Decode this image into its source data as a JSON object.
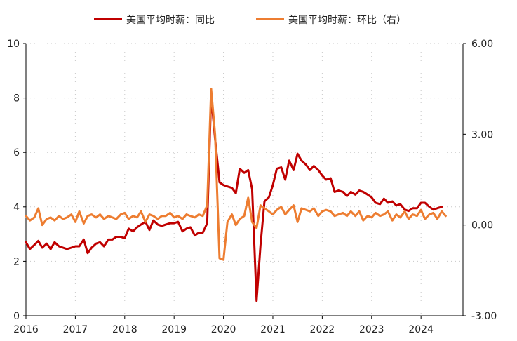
{
  "chart_data": {
    "type": "line",
    "legend": {
      "position": "top-center"
    },
    "x_axis": {
      "range": [
        2016.0,
        2024.85
      ],
      "ticks": [
        2016,
        2017,
        2018,
        2019,
        2020,
        2021,
        2022,
        2023,
        2024
      ]
    },
    "y_left": {
      "range": [
        0,
        10
      ],
      "tick_labels": [
        "0",
        "2",
        "4",
        "6",
        "8",
        "10"
      ]
    },
    "y_right": {
      "range": [
        -3,
        6
      ],
      "tick_labels": [
        "-3.00",
        "0.00",
        "3.00",
        "6.00"
      ]
    },
    "grid": {
      "vertical": true,
      "horizontal": true,
      "style": "dotted"
    },
    "series": [
      {
        "name": "美国平均时薪：同比",
        "color": "#c00000",
        "axis": "left",
        "points": [
          [
            2016.0,
            2.7
          ],
          [
            2016.08,
            2.45
          ],
          [
            2016.17,
            2.6
          ],
          [
            2016.25,
            2.75
          ],
          [
            2016.33,
            2.5
          ],
          [
            2016.42,
            2.65
          ],
          [
            2016.5,
            2.45
          ],
          [
            2016.58,
            2.7
          ],
          [
            2016.67,
            2.55
          ],
          [
            2016.75,
            2.5
          ],
          [
            2016.83,
            2.45
          ],
          [
            2016.92,
            2.5
          ],
          [
            2017.0,
            2.55
          ],
          [
            2017.08,
            2.55
          ],
          [
            2017.17,
            2.8
          ],
          [
            2017.25,
            2.3
          ],
          [
            2017.33,
            2.5
          ],
          [
            2017.42,
            2.65
          ],
          [
            2017.5,
            2.7
          ],
          [
            2017.58,
            2.55
          ],
          [
            2017.67,
            2.8
          ],
          [
            2017.75,
            2.8
          ],
          [
            2017.83,
            2.9
          ],
          [
            2017.92,
            2.9
          ],
          [
            2018.0,
            2.85
          ],
          [
            2018.08,
            3.2
          ],
          [
            2018.17,
            3.1
          ],
          [
            2018.25,
            3.25
          ],
          [
            2018.33,
            3.35
          ],
          [
            2018.42,
            3.45
          ],
          [
            2018.5,
            3.15
          ],
          [
            2018.58,
            3.5
          ],
          [
            2018.67,
            3.35
          ],
          [
            2018.75,
            3.3
          ],
          [
            2018.83,
            3.35
          ],
          [
            2018.92,
            3.4
          ],
          [
            2019.0,
            3.4
          ],
          [
            2019.08,
            3.45
          ],
          [
            2019.17,
            3.1
          ],
          [
            2019.25,
            3.2
          ],
          [
            2019.33,
            3.25
          ],
          [
            2019.42,
            2.95
          ],
          [
            2019.5,
            3.05
          ],
          [
            2019.58,
            3.05
          ],
          [
            2019.67,
            3.4
          ],
          [
            2019.75,
            8.1
          ],
          [
            2019.83,
            6.5
          ],
          [
            2019.92,
            4.9
          ],
          [
            2020.0,
            4.8
          ],
          [
            2020.08,
            4.75
          ],
          [
            2020.17,
            4.7
          ],
          [
            2020.25,
            4.5
          ],
          [
            2020.33,
            5.4
          ],
          [
            2020.42,
            5.25
          ],
          [
            2020.5,
            5.35
          ],
          [
            2020.58,
            4.65
          ],
          [
            2020.67,
            0.55
          ],
          [
            2020.75,
            2.6
          ],
          [
            2020.83,
            4.2
          ],
          [
            2020.92,
            4.35
          ],
          [
            2021.0,
            4.8
          ],
          [
            2021.08,
            5.4
          ],
          [
            2021.17,
            5.45
          ],
          [
            2021.25,
            5.0
          ],
          [
            2021.33,
            5.7
          ],
          [
            2021.42,
            5.35
          ],
          [
            2021.5,
            5.95
          ],
          [
            2021.58,
            5.7
          ],
          [
            2021.67,
            5.55
          ],
          [
            2021.75,
            5.35
          ],
          [
            2021.83,
            5.5
          ],
          [
            2021.92,
            5.35
          ],
          [
            2022.0,
            5.15
          ],
          [
            2022.08,
            5.0
          ],
          [
            2022.17,
            5.05
          ],
          [
            2022.25,
            4.55
          ],
          [
            2022.33,
            4.6
          ],
          [
            2022.42,
            4.55
          ],
          [
            2022.5,
            4.4
          ],
          [
            2022.58,
            4.55
          ],
          [
            2022.67,
            4.45
          ],
          [
            2022.75,
            4.6
          ],
          [
            2022.83,
            4.55
          ],
          [
            2022.92,
            4.45
          ],
          [
            2023.0,
            4.35
          ],
          [
            2023.08,
            4.15
          ],
          [
            2023.17,
            4.1
          ],
          [
            2023.25,
            4.3
          ],
          [
            2023.33,
            4.15
          ],
          [
            2023.42,
            4.2
          ],
          [
            2023.5,
            4.05
          ],
          [
            2023.58,
            4.1
          ],
          [
            2023.67,
            3.9
          ],
          [
            2023.75,
            3.85
          ],
          [
            2023.83,
            3.95
          ],
          [
            2023.92,
            3.95
          ],
          [
            2024.0,
            4.15
          ],
          [
            2024.08,
            4.15
          ],
          [
            2024.17,
            4.0
          ],
          [
            2024.25,
            3.9
          ],
          [
            2024.33,
            3.95
          ],
          [
            2024.42,
            4.0
          ]
        ]
      },
      {
        "name": "美国平均时薪：环比（右）",
        "color": "#ed7d31",
        "axis": "right",
        "points": [
          [
            2016.0,
            0.3
          ],
          [
            2016.08,
            0.15
          ],
          [
            2016.17,
            0.25
          ],
          [
            2016.25,
            0.55
          ],
          [
            2016.33,
            0.0
          ],
          [
            2016.42,
            0.2
          ],
          [
            2016.5,
            0.25
          ],
          [
            2016.58,
            0.15
          ],
          [
            2016.67,
            0.3
          ],
          [
            2016.75,
            0.2
          ],
          [
            2016.83,
            0.25
          ],
          [
            2016.92,
            0.35
          ],
          [
            2017.0,
            0.1
          ],
          [
            2017.08,
            0.45
          ],
          [
            2017.17,
            0.05
          ],
          [
            2017.25,
            0.3
          ],
          [
            2017.33,
            0.35
          ],
          [
            2017.42,
            0.25
          ],
          [
            2017.5,
            0.35
          ],
          [
            2017.58,
            0.2
          ],
          [
            2017.67,
            0.3
          ],
          [
            2017.75,
            0.25
          ],
          [
            2017.83,
            0.2
          ],
          [
            2017.92,
            0.35
          ],
          [
            2018.0,
            0.4
          ],
          [
            2018.08,
            0.2
          ],
          [
            2018.17,
            0.3
          ],
          [
            2018.25,
            0.25
          ],
          [
            2018.33,
            0.45
          ],
          [
            2018.42,
            0.1
          ],
          [
            2018.5,
            0.35
          ],
          [
            2018.58,
            0.3
          ],
          [
            2018.67,
            0.2
          ],
          [
            2018.75,
            0.3
          ],
          [
            2018.83,
            0.3
          ],
          [
            2018.92,
            0.4
          ],
          [
            2019.0,
            0.25
          ],
          [
            2019.08,
            0.3
          ],
          [
            2019.17,
            0.2
          ],
          [
            2019.25,
            0.35
          ],
          [
            2019.33,
            0.3
          ],
          [
            2019.42,
            0.25
          ],
          [
            2019.5,
            0.35
          ],
          [
            2019.58,
            0.3
          ],
          [
            2019.67,
            0.65
          ],
          [
            2019.75,
            4.5
          ],
          [
            2019.83,
            3.0
          ],
          [
            2019.92,
            -1.1
          ],
          [
            2020.0,
            -1.15
          ],
          [
            2020.08,
            0.1
          ],
          [
            2020.17,
            0.35
          ],
          [
            2020.25,
            0.0
          ],
          [
            2020.33,
            0.2
          ],
          [
            2020.42,
            0.3
          ],
          [
            2020.5,
            0.9
          ],
          [
            2020.58,
            0.1
          ],
          [
            2020.67,
            -0.1
          ],
          [
            2020.75,
            0.65
          ],
          [
            2020.83,
            0.55
          ],
          [
            2020.92,
            0.45
          ],
          [
            2021.0,
            0.35
          ],
          [
            2021.08,
            0.5
          ],
          [
            2021.17,
            0.6
          ],
          [
            2021.25,
            0.35
          ],
          [
            2021.33,
            0.5
          ],
          [
            2021.42,
            0.65
          ],
          [
            2021.5,
            0.1
          ],
          [
            2021.58,
            0.55
          ],
          [
            2021.67,
            0.5
          ],
          [
            2021.75,
            0.45
          ],
          [
            2021.83,
            0.55
          ],
          [
            2021.92,
            0.3
          ],
          [
            2022.0,
            0.45
          ],
          [
            2022.08,
            0.5
          ],
          [
            2022.17,
            0.45
          ],
          [
            2022.25,
            0.3
          ],
          [
            2022.33,
            0.35
          ],
          [
            2022.42,
            0.4
          ],
          [
            2022.5,
            0.3
          ],
          [
            2022.58,
            0.45
          ],
          [
            2022.67,
            0.3
          ],
          [
            2022.75,
            0.45
          ],
          [
            2022.83,
            0.15
          ],
          [
            2022.92,
            0.3
          ],
          [
            2023.0,
            0.25
          ],
          [
            2023.08,
            0.4
          ],
          [
            2023.17,
            0.3
          ],
          [
            2023.25,
            0.35
          ],
          [
            2023.33,
            0.45
          ],
          [
            2023.42,
            0.15
          ],
          [
            2023.5,
            0.35
          ],
          [
            2023.58,
            0.25
          ],
          [
            2023.67,
            0.45
          ],
          [
            2023.75,
            0.2
          ],
          [
            2023.83,
            0.35
          ],
          [
            2023.92,
            0.3
          ],
          [
            2024.0,
            0.5
          ],
          [
            2024.08,
            0.2
          ],
          [
            2024.17,
            0.35
          ],
          [
            2024.25,
            0.4
          ],
          [
            2024.33,
            0.2
          ],
          [
            2024.42,
            0.45
          ],
          [
            2024.5,
            0.3
          ]
        ]
      }
    ]
  }
}
